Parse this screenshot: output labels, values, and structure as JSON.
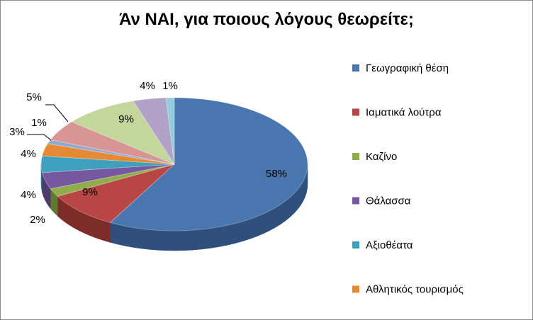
{
  "chart_data": {
    "type": "pie",
    "title": "Άν ΝΑΙ, για ποιους λόγους θεωρείτε;",
    "legend_position": "right",
    "slices": [
      {
        "name": "Γεωγραφική θέση",
        "value": 58,
        "label": "58%",
        "color": "#4a76b0",
        "shade": "#2f507d"
      },
      {
        "name": "Ιαματικά λούτρα",
        "value": 9,
        "label": "9%",
        "color": "#b84644",
        "shade": "#7e2c2a"
      },
      {
        "name": "Καζίνο",
        "value": 2,
        "label": "2%",
        "color": "#8fad4a",
        "shade": "#617830"
      },
      {
        "name": "Θάλασσα",
        "value": 4,
        "label": "4%",
        "color": "#7658a0",
        "shade": "#4f3a6d"
      },
      {
        "name": "Αξιοθέατα",
        "value": 4,
        "label": "4%",
        "color": "#3fa0bd",
        "shade": "#2a6e83"
      },
      {
        "name": "Αθλητικός τουρισμός",
        "value": 3,
        "label": "3%",
        "color": "#e48a34",
        "shade": "#a05e20"
      },
      {
        "name": "",
        "value": 1,
        "label": "1%",
        "color": "#93a9d0",
        "shade": "#62789d"
      },
      {
        "name": "",
        "value": 5,
        "label": "5%",
        "color": "#d99594",
        "shade": "#9e6362"
      },
      {
        "name": "",
        "value": 9,
        "label": "9%",
        "color": "#c3d69b",
        "shade": "#8da064"
      },
      {
        "name": "",
        "value": 4,
        "label": "4%",
        "color": "#b2a2c7",
        "shade": "#7c6e92"
      },
      {
        "name": "",
        "value": 1,
        "label": "1%",
        "color": "#93cddd",
        "shade": "#5f97a6"
      }
    ],
    "legend": [
      {
        "name": "Γεωγραφική θέση",
        "color": "#4a76b0"
      },
      {
        "name": "Ιαματικά λούτρα",
        "color": "#b84644"
      },
      {
        "name": "Καζίνο",
        "color": "#8fad4a"
      },
      {
        "name": "Θάλασσα",
        "color": "#7658a0"
      },
      {
        "name": "Αξιοθέατα",
        "color": "#3fa0bd"
      },
      {
        "name": "Αθλητικός τουρισμός",
        "color": "#e48a34"
      }
    ]
  }
}
